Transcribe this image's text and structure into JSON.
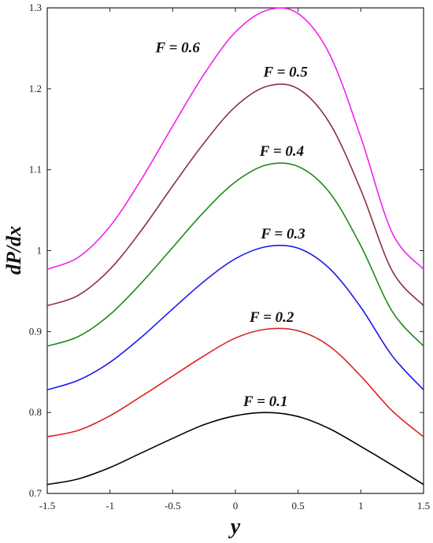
{
  "chart_data": {
    "type": "line",
    "title": "",
    "xlabel": "y",
    "ylabel": "dP/dx",
    "xlim": [
      -1.5,
      1.5
    ],
    "ylim": [
      0.7,
      1.3
    ],
    "xticks": [
      "-1.5",
      "-1",
      "-0.5",
      "0",
      "0.5",
      "1",
      "1.5"
    ],
    "yticks": [
      "0.7",
      "0.8",
      "0.9",
      "1",
      "1.1",
      "1.2",
      "1.3"
    ],
    "grid": false,
    "series": [
      {
        "name": "F = 0.1",
        "color": "#000000",
        "x": [
          -1.5,
          -1.25,
          -1.0,
          -0.75,
          -0.5,
          -0.25,
          0.0,
          0.25,
          0.5,
          0.75,
          1.0,
          1.25,
          1.5
        ],
        "y": [
          0.711,
          0.718,
          0.732,
          0.75,
          0.768,
          0.785,
          0.796,
          0.8,
          0.795,
          0.78,
          0.758,
          0.735,
          0.711
        ]
      },
      {
        "name": "F = 0.2",
        "color": "#dd2222",
        "x": [
          -1.5,
          -1.25,
          -1.0,
          -0.75,
          -0.5,
          -0.25,
          0.0,
          0.25,
          0.5,
          0.75,
          1.0,
          1.25,
          1.5
        ],
        "y": [
          0.77,
          0.778,
          0.796,
          0.82,
          0.845,
          0.87,
          0.892,
          0.903,
          0.901,
          0.882,
          0.845,
          0.802,
          0.77
        ]
      },
      {
        "name": "F = 0.3",
        "color": "#1a1aee",
        "x": [
          -1.5,
          -1.25,
          -1.0,
          -0.75,
          -0.5,
          -0.25,
          0.0,
          0.25,
          0.5,
          0.75,
          1.0,
          1.25,
          1.5
        ],
        "y": [
          0.828,
          0.84,
          0.862,
          0.893,
          0.928,
          0.962,
          0.99,
          1.005,
          1.003,
          0.978,
          0.93,
          0.87,
          0.828
        ]
      },
      {
        "name": "F = 0.4",
        "color": "#1a8a1a",
        "x": [
          -1.5,
          -1.25,
          -1.0,
          -0.75,
          -0.5,
          -0.25,
          0.0,
          0.25,
          0.5,
          0.75,
          1.0,
          1.25,
          1.5
        ],
        "y": [
          0.882,
          0.894,
          0.921,
          0.96,
          1.004,
          1.048,
          1.085,
          1.106,
          1.104,
          1.072,
          1.006,
          0.925,
          0.882
        ]
      },
      {
        "name": "F = 0.5",
        "color": "#8b2e4a",
        "x": [
          -1.5,
          -1.25,
          -1.0,
          -0.75,
          -0.5,
          -0.25,
          0.0,
          0.25,
          0.5,
          0.75,
          1.0,
          1.25,
          1.5
        ],
        "y": [
          0.932,
          0.945,
          0.977,
          1.025,
          1.08,
          1.133,
          1.178,
          1.203,
          1.2,
          1.158,
          1.075,
          0.975,
          0.932
        ]
      },
      {
        "name": "F = 0.6",
        "color": "#ee22ee",
        "x": [
          -1.5,
          -1.25,
          -1.0,
          -0.75,
          -0.5,
          -0.25,
          0.0,
          0.25,
          0.5,
          0.75,
          1.0,
          1.25,
          1.5
        ],
        "y": [
          0.977,
          0.992,
          1.03,
          1.088,
          1.154,
          1.218,
          1.27,
          1.297,
          1.293,
          1.243,
          1.14,
          1.022,
          0.977
        ]
      }
    ],
    "annotations": [
      {
        "text": "F = 0.6",
        "x": -0.46,
        "y": 1.245
      },
      {
        "text": "F = 0.5",
        "x": 0.4,
        "y": 1.215
      },
      {
        "text": "F = 0.4",
        "x": 0.37,
        "y": 1.117
      },
      {
        "text": "F = 0.3",
        "x": 0.38,
        "y": 1.015
      },
      {
        "text": "F = 0.2",
        "x": 0.29,
        "y": 0.912
      },
      {
        "text": "F = 0.1",
        "x": 0.24,
        "y": 0.808
      }
    ]
  }
}
